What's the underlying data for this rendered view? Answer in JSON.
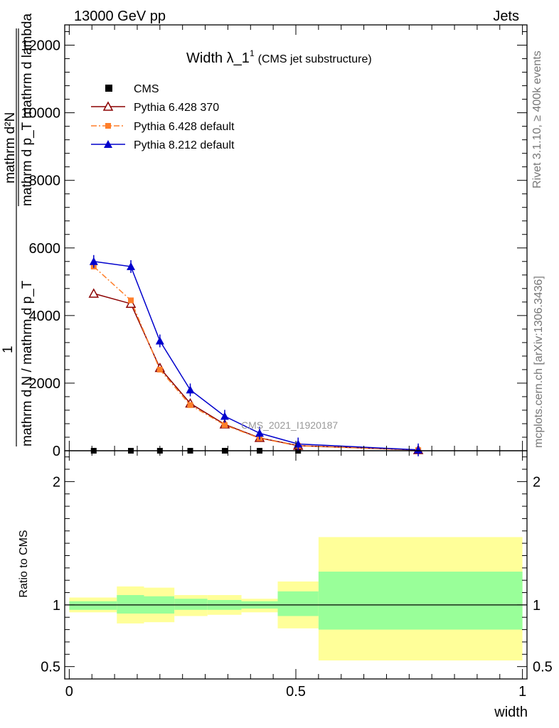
{
  "header": {
    "left": "13000 GeV pp",
    "right": "Jets"
  },
  "side_labels": {
    "rivet": "Rivet 3.1.10, ≥ 400k events",
    "mcplots": "mcplots.cern.ch [arXiv:1306.3436]"
  },
  "watermark": "CMS_2021_I1920187",
  "colors": {
    "cms": "#000000",
    "py6_370": "#8b0000",
    "py6_default": "#ff7f2a",
    "py8_default": "#0000cc",
    "band_outer": "#ffff99",
    "band_inner": "#99ff99"
  },
  "chart_data": [
    {
      "type": "line",
      "title": "Width λ_1",
      "title_sup": "1",
      "subtitle": "(CMS jet substructure)",
      "ylabel_parts": {
        "numerator_top": "mathrm d²N",
        "denominator_top": "mathrm d p_T mathrm d lambda",
        "one": "1",
        "bottom": "mathrm d N / mathrm d p_T"
      },
      "ylim": [
        0,
        12600
      ],
      "yticks": [
        0,
        2000,
        4000,
        6000,
        8000,
        10000,
        12000
      ],
      "ytick_labels": [
        "0",
        "2000",
        "4000",
        "6000",
        "8000",
        "10000",
        "12000"
      ],
      "xlim": [
        -0.01,
        1.01
      ],
      "legend": [
        {
          "name": "CMS",
          "marker": "square"
        },
        {
          "name": "Pythia 6.428 370",
          "marker": "open-triangle"
        },
        {
          "name": "Pythia 6.428 default",
          "marker": "square-dashdot"
        },
        {
          "name": "Pythia 8.212 default",
          "marker": "filled-triangle"
        }
      ],
      "series": [
        {
          "name": "CMS",
          "x": [
            0.054,
            0.136,
            0.2,
            0.267,
            0.343,
            0.42,
            0.505,
            0.77
          ],
          "values": [
            0,
            0,
            0,
            0,
            0,
            0,
            0,
            0
          ]
        },
        {
          "name": "Pythia 6.428 370",
          "x": [
            0.054,
            0.136,
            0.2,
            0.267,
            0.343,
            0.42,
            0.505,
            0.77
          ],
          "values": [
            4650,
            4350,
            2450,
            1400,
            780,
            380,
            150,
            20
          ]
        },
        {
          "name": "Pythia 6.428 default",
          "x": [
            0.054,
            0.136,
            0.2,
            0.267,
            0.343,
            0.42,
            0.505,
            0.77
          ],
          "values": [
            5450,
            4450,
            2400,
            1350,
            760,
            370,
            145,
            18
          ]
        },
        {
          "name": "Pythia 8.212 default",
          "x": [
            0.054,
            0.136,
            0.2,
            0.267,
            0.343,
            0.42,
            0.505,
            0.77
          ],
          "values": [
            5600,
            5450,
            3250,
            1800,
            1020,
            520,
            200,
            25
          ]
        }
      ]
    },
    {
      "type": "area",
      "ylabel": "Ratio to CMS",
      "xlabel": "width",
      "ylim": [
        0.4,
        2.25
      ],
      "yticks": [
        0.5,
        1,
        2
      ],
      "ytick_labels": [
        "0.5",
        "1",
        "2"
      ],
      "xlim": [
        -0.01,
        1.01
      ],
      "xticks": [
        0,
        0.5,
        1
      ],
      "xtick_labels": [
        "0",
        "0.5",
        "1"
      ],
      "reference": 1,
      "bins": [
        {
          "x0": 0.0,
          "x1": 0.105,
          "outer": [
            0.94,
            1.06
          ],
          "inner": [
            0.96,
            1.03
          ]
        },
        {
          "x0": 0.105,
          "x1": 0.165,
          "outer": [
            0.85,
            1.15
          ],
          "inner": [
            0.93,
            1.08
          ]
        },
        {
          "x0": 0.165,
          "x1": 0.232,
          "outer": [
            0.86,
            1.14
          ],
          "inner": [
            0.93,
            1.07
          ]
        },
        {
          "x0": 0.232,
          "x1": 0.305,
          "outer": [
            0.91,
            1.08
          ],
          "inner": [
            0.96,
            1.05
          ]
        },
        {
          "x0": 0.305,
          "x1": 0.38,
          "outer": [
            0.92,
            1.08
          ],
          "inner": [
            0.96,
            1.04
          ]
        },
        {
          "x0": 0.38,
          "x1": 0.46,
          "outer": [
            0.94,
            1.05
          ],
          "inner": [
            0.97,
            1.03
          ]
        },
        {
          "x0": 0.46,
          "x1": 0.55,
          "outer": [
            0.81,
            1.19
          ],
          "inner": [
            0.91,
            1.11
          ]
        },
        {
          "x0": 0.55,
          "x1": 1.0,
          "outer": [
            0.55,
            1.55
          ],
          "inner": [
            0.8,
            1.27
          ]
        }
      ]
    }
  ]
}
